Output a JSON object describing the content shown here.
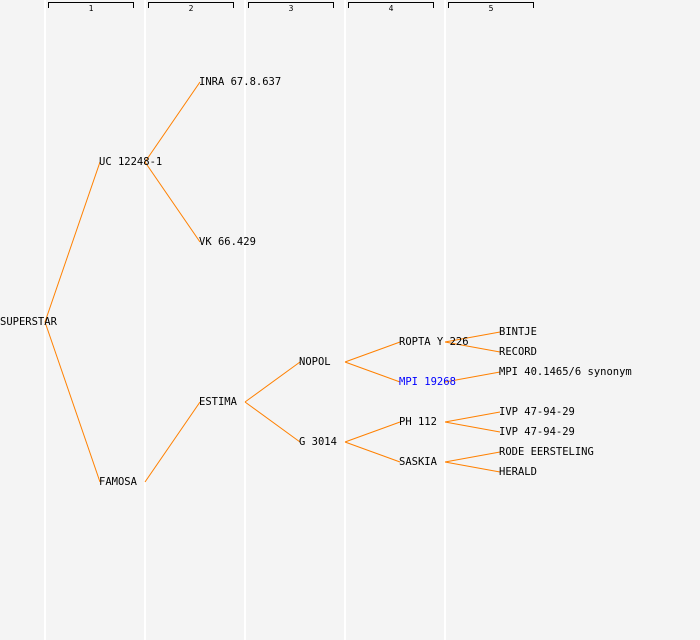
{
  "columns": [
    "1",
    "2",
    "3",
    "4",
    "5"
  ],
  "colors": {
    "edge": "#ff8000",
    "highlight": "#0000ff",
    "text": "#000000"
  },
  "nodes": [
    {
      "label": "SUPERSTAR",
      "generation": 0
    },
    {
      "label": "UC 12248-1",
      "generation": 1,
      "parent": 0
    },
    {
      "label": "FAMOSA",
      "generation": 1,
      "parent": 0
    },
    {
      "label": "INRA 67.8.637",
      "generation": 2,
      "parent": 1
    },
    {
      "label": "VK 66.429",
      "generation": 2,
      "parent": 1
    },
    {
      "label": "ESTIMA",
      "generation": 2,
      "parent": 2
    },
    {
      "label": "NOPOL",
      "generation": 3,
      "parent": 5
    },
    {
      "label": "G 3014",
      "generation": 3,
      "parent": 5
    },
    {
      "label": "ROPTA Y 226",
      "generation": 4,
      "parent": 6
    },
    {
      "label": "MPI 19268",
      "generation": 4,
      "parent": 6,
      "highlight": true
    },
    {
      "label": "PH 112",
      "generation": 4,
      "parent": 7
    },
    {
      "label": "SASKIA",
      "generation": 4,
      "parent": 7
    },
    {
      "label": "BINTJE",
      "generation": 5,
      "parent": 8
    },
    {
      "label": "RECORD",
      "generation": 5,
      "parent": 8
    },
    {
      "label": "MPI 40.1465/6 synonym",
      "generation": 5,
      "parent": 9
    },
    {
      "label": "IVP 47-94-29",
      "generation": 5,
      "parent": 10
    },
    {
      "label": "IVP 47-94-29",
      "generation": 5,
      "parent": 10
    },
    {
      "label": "RODE EERSTELING",
      "generation": 5,
      "parent": 11
    },
    {
      "label": "HERALD",
      "generation": 5,
      "parent": 11
    }
  ]
}
